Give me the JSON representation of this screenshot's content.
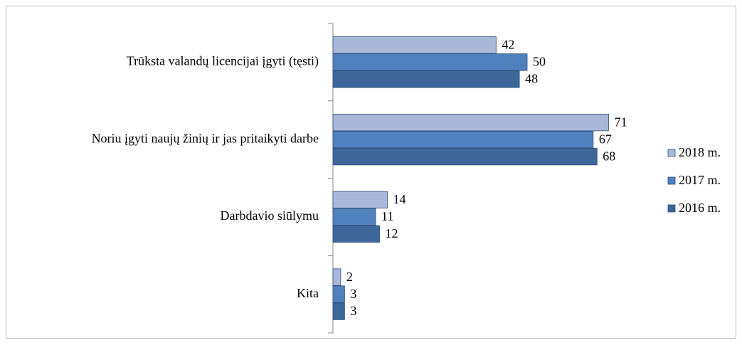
{
  "chart_data": {
    "type": "bar",
    "orientation": "horizontal",
    "categories": [
      "Trūksta valandų licencijai  įgyti (tęsti)",
      "Noriu įgyti naujų žinių ir jas pritaikyti darbe",
      "Darbdavio siūlymu",
      "Kita"
    ],
    "series": [
      {
        "name": "2018 m.",
        "color": "#a9b8d9",
        "values": [
          42,
          71,
          14,
          2
        ]
      },
      {
        "name": "2017 m.",
        "color": "#4f81bd",
        "values": [
          50,
          67,
          11,
          3
        ]
      },
      {
        "name": "2016 m.",
        "color": "#3d6699",
        "values": [
          48,
          68,
          12,
          3
        ]
      }
    ],
    "xlim": [
      0,
      100
    ],
    "legend": "right"
  }
}
